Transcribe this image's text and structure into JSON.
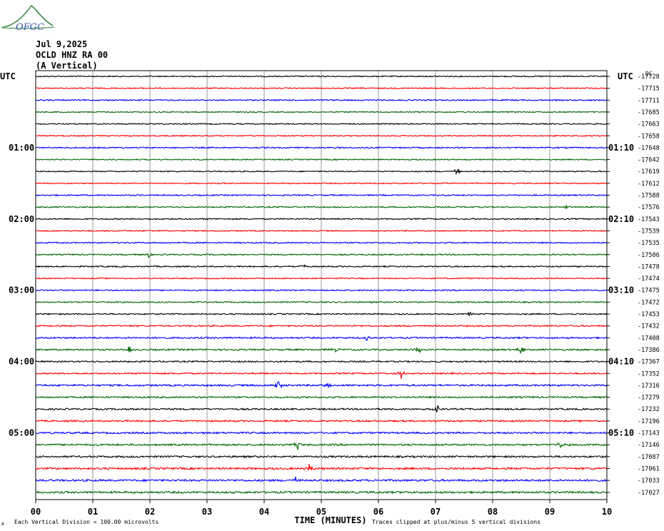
{
  "logo_text": "OFGC",
  "header": {
    "date": "Jul 9,2025",
    "station": "OCLD HNZ RA 00",
    "component": "(A Vertical)"
  },
  "labels": {
    "utc_left": "UTC",
    "utc_right": "UTC",
    "dc_right": "DC",
    "xlabel": "TIME (MINUTES)",
    "scale_note": "Each Vertical Division =  100.00 microvolts",
    "clip_note": "Traces clipped at plus/minus 5 vertical divisions",
    "corner_mark": "A"
  },
  "colors": {
    "trace_cycle": [
      "#000000",
      "#ff0000",
      "#0000ff",
      "#006600"
    ],
    "grid": "#000000",
    "background": "#ffffff"
  },
  "chart_data": {
    "type": "line",
    "description_free": true,
    "x_ticks": [
      "00",
      "01",
      "02",
      "03",
      "04",
      "05",
      "06",
      "07",
      "08",
      "09",
      "10"
    ],
    "xlim": [
      0,
      10
    ],
    "trace_minutes": 10,
    "num_traces": 36,
    "left_time_labels": [
      {
        "trace": 6,
        "label": "01:00"
      },
      {
        "trace": 12,
        "label": "02:00"
      },
      {
        "trace": 18,
        "label": "03:00"
      },
      {
        "trace": 24,
        "label": "04:00"
      },
      {
        "trace": 30,
        "label": "05:00"
      }
    ],
    "right_time_labels": [
      {
        "trace": 6,
        "label": "01:10"
      },
      {
        "trace": 12,
        "label": "02:10"
      },
      {
        "trace": 18,
        "label": "03:10"
      },
      {
        "trace": 24,
        "label": "04:10"
      },
      {
        "trace": 30,
        "label": "05:10"
      }
    ],
    "dc_offsets": [
      -17728,
      -17715,
      -17711,
      -17685,
      -17663,
      -17658,
      -17648,
      -17642,
      -17619,
      -17612,
      -17588,
      -17576,
      -17543,
      -17539,
      -17535,
      -17506,
      -17478,
      -17474,
      -17475,
      -17472,
      -17453,
      -17432,
      -17408,
      -17386,
      -17367,
      -17352,
      -17316,
      -17279,
      -17232,
      -17196,
      -17143,
      -17146,
      -17087,
      -17061,
      -17033,
      -17027
    ],
    "noise_level": [
      0.35,
      0.35,
      0.4,
      0.35,
      0.35,
      0.35,
      0.4,
      0.35,
      0.35,
      0.35,
      0.4,
      0.4,
      0.4,
      0.35,
      0.4,
      0.4,
      0.4,
      0.35,
      0.4,
      0.4,
      0.4,
      0.45,
      0.5,
      0.5,
      0.45,
      0.45,
      0.55,
      0.5,
      0.5,
      0.5,
      0.55,
      0.55,
      0.55,
      0.6,
      0.6,
      0.6
    ],
    "events": [
      {
        "trace": 8,
        "minute": 7.38,
        "amplitude": 1.4
      },
      {
        "trace": 11,
        "minute": 9.3,
        "amplitude": 0.8
      },
      {
        "trace": 15,
        "minute": 1.97,
        "amplitude": 0.9
      },
      {
        "trace": 16,
        "minute": 4.7,
        "amplitude": 0.7
      },
      {
        "trace": 20,
        "minute": 7.6,
        "amplitude": 0.8
      },
      {
        "trace": 22,
        "minute": 5.8,
        "amplitude": 0.8
      },
      {
        "trace": 23,
        "minute": 1.65,
        "amplitude": 1.3
      },
      {
        "trace": 23,
        "minute": 5.25,
        "amplitude": 0.8
      },
      {
        "trace": 23,
        "minute": 6.7,
        "amplitude": 1.8
      },
      {
        "trace": 23,
        "minute": 8.5,
        "amplitude": 1.6
      },
      {
        "trace": 25,
        "minute": 6.4,
        "amplitude": 1.6
      },
      {
        "trace": 26,
        "minute": 4.25,
        "amplitude": 1.8
      },
      {
        "trace": 26,
        "minute": 5.1,
        "amplitude": 1.0
      },
      {
        "trace": 28,
        "minute": 7.03,
        "amplitude": 1.8
      },
      {
        "trace": 31,
        "minute": 4.58,
        "amplitude": 1.8
      },
      {
        "trace": 31,
        "minute": 9.2,
        "amplitude": 1.5
      },
      {
        "trace": 33,
        "minute": 4.8,
        "amplitude": 1.8
      },
      {
        "trace": 34,
        "minute": 4.55,
        "amplitude": 0.9
      }
    ]
  }
}
